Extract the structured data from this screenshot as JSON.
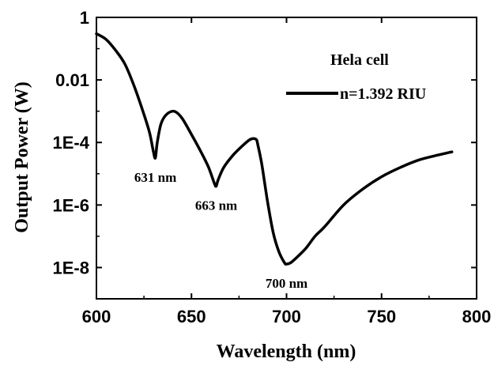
{
  "chart_data": {
    "type": "line",
    "title": "",
    "xlabel": "Wavelength (nm)",
    "ylabel": "Output Power (W)",
    "xscale": "linear",
    "yscale": "log",
    "xlim": [
      600,
      800
    ],
    "ylim_log10": [
      -9,
      0
    ],
    "x_ticks": [
      600,
      650,
      700,
      750,
      800
    ],
    "x_tick_labels": [
      "600",
      "650",
      "700",
      "750",
      "800"
    ],
    "y_ticks_log10": [
      0,
      -2,
      -4,
      -6,
      -8
    ],
    "y_tick_labels": [
      "1",
      "0.01",
      "1E-4",
      "1E-6",
      "1E-8"
    ],
    "grid": false,
    "legend": {
      "title": "Hela cell",
      "entries": [
        "n=1.392 RIU"
      ],
      "placement": "top-right"
    },
    "annotations": [
      {
        "text": "631 nm",
        "x": 631,
        "y": 3.2e-05
      },
      {
        "text": "663 nm",
        "x": 663,
        "y": 4e-06
      },
      {
        "text": "700 nm",
        "x": 700,
        "y": 1.3e-08
      }
    ],
    "series": [
      {
        "name": "n=1.392 RIU",
        "color": "#000000",
        "x": [
          600,
          605,
          610,
          615,
          620,
          625,
          628,
          630,
          631,
          632,
          634,
          637,
          641,
          645,
          650,
          655,
          659,
          662,
          663,
          664,
          667,
          672,
          677,
          681,
          684,
          685,
          687,
          690,
          693,
          696,
          699,
          700,
          702,
          705,
          710,
          715,
          720,
          730,
          740,
          750,
          760,
          770,
          780,
          787
        ],
        "y": [
          0.3,
          0.2,
          0.09,
          0.032,
          0.006,
          0.00079,
          0.0002,
          5e-05,
          3.2e-05,
          0.0001,
          0.0004,
          0.0008,
          0.00099,
          0.0006,
          0.00018,
          5e-05,
          1.6e-05,
          5e-06,
          4e-06,
          6.3e-06,
          1.6e-05,
          4e-05,
          8e-05,
          0.000126,
          0.000126,
          7.9e-05,
          2e-05,
          1.3e-06,
          1.3e-07,
          3.2e-08,
          1.4e-08,
          1.3e-08,
          1.4e-08,
          2e-08,
          4e-08,
          1e-07,
          2e-07,
          1e-06,
          3.2e-06,
          8e-06,
          1.6e-05,
          2.8e-05,
          4e-05,
          5e-05
        ]
      }
    ]
  }
}
